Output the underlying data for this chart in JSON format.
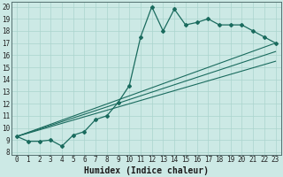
{
  "xlabel": "Humidex (Indice chaleur)",
  "ylabel": "",
  "background_color": "#cce9e5",
  "grid_color": "#aad4ce",
  "line_color": "#1a6b5e",
  "xlim": [
    -0.5,
    23.5
  ],
  "ylim": [
    7.8,
    20.4
  ],
  "xticks": [
    0,
    1,
    2,
    3,
    4,
    5,
    6,
    7,
    8,
    9,
    10,
    11,
    12,
    13,
    14,
    15,
    16,
    17,
    18,
    19,
    20,
    21,
    22,
    23
  ],
  "yticks": [
    8,
    9,
    10,
    11,
    12,
    13,
    14,
    15,
    16,
    17,
    18,
    19,
    20
  ],
  "series1_x": [
    0,
    1,
    2,
    3,
    4,
    5,
    6,
    7,
    8,
    9,
    10,
    11,
    12,
    13,
    14,
    15,
    16,
    17,
    18,
    19,
    20,
    21,
    22,
    23
  ],
  "series1_y": [
    9.3,
    8.9,
    8.9,
    9.0,
    8.5,
    9.4,
    9.7,
    10.7,
    11.0,
    12.1,
    13.5,
    17.5,
    20.0,
    18.0,
    19.8,
    18.5,
    18.7,
    19.0,
    18.5,
    18.5,
    18.5,
    18.0,
    17.5,
    17.0
  ],
  "series2_x": [
    0,
    23
  ],
  "series2_y": [
    9.3,
    17.0
  ],
  "series3_x": [
    0,
    23
  ],
  "series3_y": [
    9.3,
    16.3
  ],
  "series4_x": [
    0,
    23
  ],
  "series4_y": [
    9.3,
    15.5
  ],
  "fontsize_xlabel": 7,
  "tick_fontsize": 5.5
}
